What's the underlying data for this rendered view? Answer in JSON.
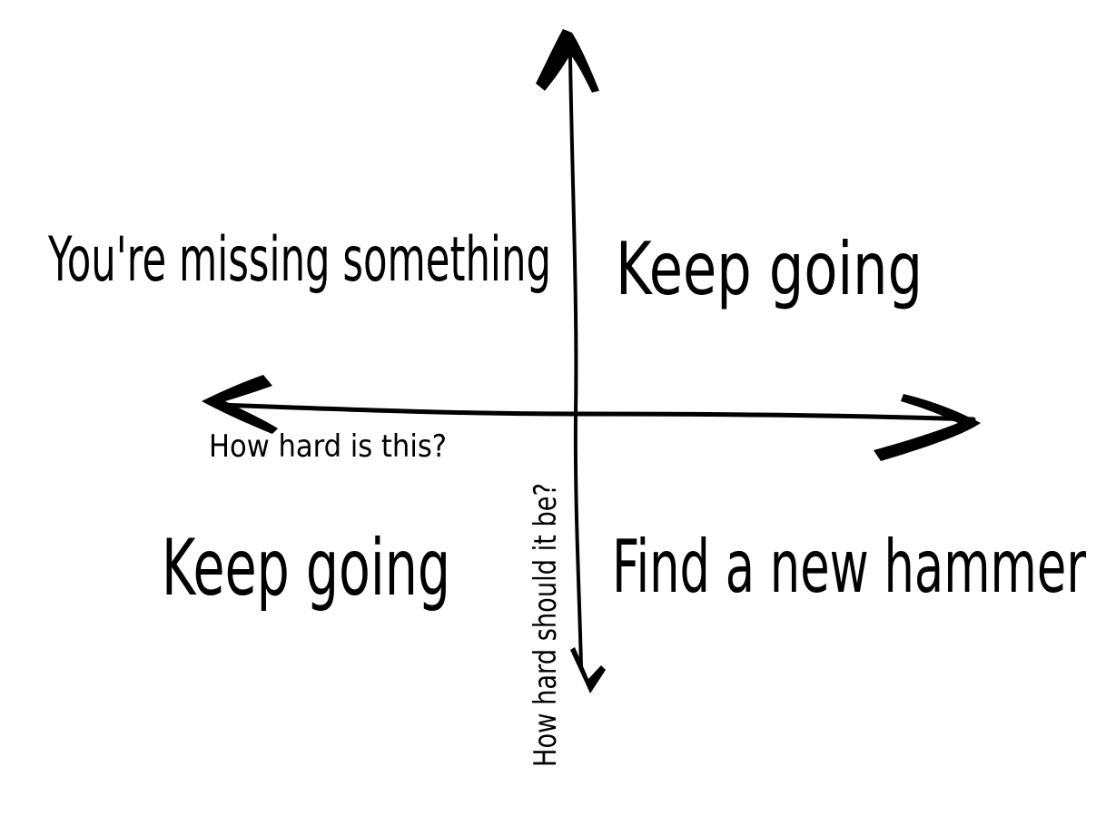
{
  "quadrants": {
    "top_left": "You're missing something",
    "top_right": "Keep going",
    "bottom_left": "Keep going",
    "bottom_right": "Find a new hammer"
  },
  "axes": {
    "horizontal_label": "How hard is this?",
    "vertical_label": "How hard should it be?"
  },
  "colors": {
    "ink": "#000000",
    "background": "#ffffff"
  }
}
